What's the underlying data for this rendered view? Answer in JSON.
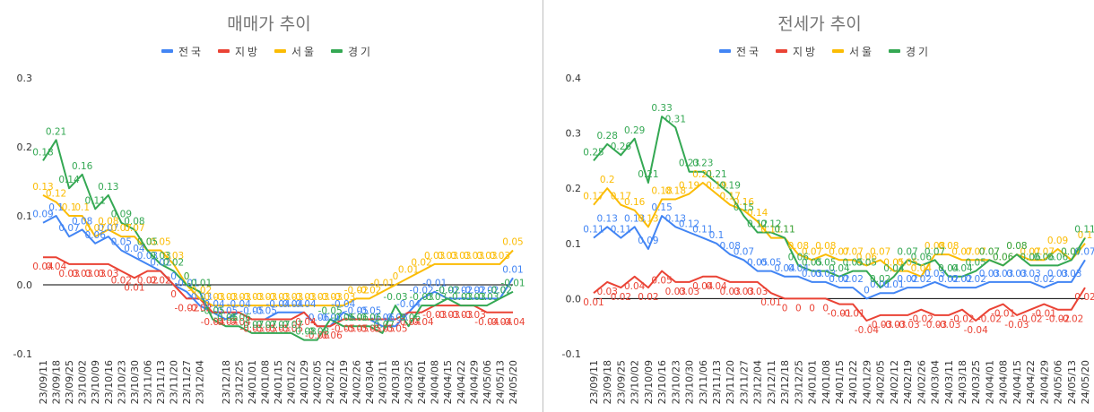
{
  "chart_data": [
    {
      "type": "line",
      "title": "매매가 추이",
      "ylim": [
        -0.1,
        0.3
      ],
      "yticks": [
        "0.3",
        "0.2",
        "0.1",
        "0.0",
        "-0.1"
      ],
      "ytick_values": [
        0.3,
        0.2,
        0.1,
        0.0,
        -0.1
      ],
      "grid": false,
      "legend": "top",
      "x": [
        "23/09/11",
        "23/09/18",
        "23/09/25",
        "23/10/02",
        "23/10/09",
        "23/10/16",
        "23/10/23",
        "23/10/30",
        "23/11/06",
        "23/11/13",
        "23/11/20",
        "23/11/27",
        "23/12/04",
        "23/12/11",
        "23/12/18",
        "23/12/25",
        "24/01/01",
        "24/01/08",
        "24/01/15",
        "24/01/22",
        "24/01/29",
        "24/02/05",
        "24/02/12",
        "24/02/19",
        "24/02/26",
        "24/03/04",
        "24/03/11",
        "24/03/18",
        "24/03/25",
        "24/04/01",
        "24/04/08",
        "24/04/15",
        "24/04/22",
        "24/04/29",
        "24/05/06",
        "24/05/13",
        "24/05/20"
      ],
      "xticks": [
        "23/09/11",
        "23/09/18",
        "23/09/25",
        "23/10/02",
        "23/10/09",
        "23/10/16",
        "23/10/23",
        "23/10/30",
        "23/11/06",
        "23/11/13",
        "23/11/20",
        "23/11/27",
        "23/12/04",
        "23/12/18",
        "23/12/25",
        "24/01/01",
        "24/01/08",
        "24/01/15",
        "24/01/22",
        "24/01/29",
        "24/02/05",
        "24/02/12",
        "24/02/19",
        "24/02/26",
        "24/03/04",
        "24/03/11",
        "24/03/18",
        "24/03/25",
        "24/04/01",
        "24/04/08",
        "24/04/15",
        "24/04/22",
        "24/04/29",
        "24/05/06",
        "24/05/13",
        "24/05/20"
      ],
      "series": [
        {
          "name": "전국",
          "color": "#4285f4",
          "values": [
            0.09,
            0.1,
            0.07,
            0.08,
            0.06,
            0.07,
            0.05,
            0.04,
            0.03,
            0.02,
            0.0,
            -0.01,
            -0.03,
            -0.04,
            -0.05,
            -0.04,
            -0.05,
            -0.05,
            -0.04,
            -0.04,
            -0.04,
            -0.06,
            -0.06,
            -0.04,
            -0.05,
            -0.05,
            -0.06,
            -0.06,
            -0.04,
            -0.02,
            -0.01,
            -0.02,
            -0.02,
            -0.02,
            -0.02,
            -0.02,
            0.01
          ]
        },
        {
          "name": "지방",
          "color": "#ea4335",
          "values": [
            0.04,
            0.04,
            0.03,
            0.03,
            0.03,
            0.03,
            0.02,
            0.01,
            0.02,
            0.02,
            0.0,
            -0.02,
            -0.02,
            -0.04,
            -0.04,
            -0.04,
            -0.05,
            -0.05,
            -0.05,
            -0.05,
            -0.04,
            -0.06,
            -0.06,
            -0.05,
            -0.05,
            -0.05,
            -0.05,
            -0.05,
            -0.04,
            -0.04,
            -0.03,
            -0.03,
            -0.03,
            -0.03,
            -0.04,
            -0.04,
            -0.04
          ]
        },
        {
          "name": "서울",
          "color": "#fbbc04",
          "values": [
            0.13,
            0.12,
            0.1,
            0.1,
            0.07,
            0.08,
            0.07,
            0.07,
            0.05,
            0.05,
            0.03,
            0.0,
            -0.02,
            -0.03,
            -0.03,
            -0.03,
            -0.03,
            -0.03,
            -0.03,
            -0.03,
            -0.03,
            -0.03,
            -0.03,
            -0.03,
            -0.02,
            -0.02,
            -0.01,
            0.0,
            0.01,
            0.02,
            0.03,
            0.03,
            0.03,
            0.03,
            0.03,
            0.03,
            0.05
          ]
        },
        {
          "name": "경기",
          "color": "#34a853",
          "values": [
            0.18,
            0.21,
            0.14,
            0.16,
            0.11,
            0.13,
            0.09,
            0.08,
            0.05,
            0.03,
            0.02,
            0.0,
            -0.01,
            -0.05,
            -0.06,
            -0.06,
            -0.07,
            -0.07,
            -0.07,
            -0.07,
            -0.08,
            -0.08,
            -0.05,
            -0.06,
            -0.06,
            -0.06,
            -0.07,
            -0.03,
            -0.06,
            -0.03,
            -0.03,
            -0.02,
            -0.03,
            -0.03,
            -0.03,
            -0.02,
            -0.01
          ]
        }
      ]
    },
    {
      "type": "line",
      "title": "전세가 추이",
      "ylim": [
        -0.1,
        0.4
      ],
      "yticks": [
        "0.4",
        "0.3",
        "0.2",
        "0.1",
        "0.0",
        "-0.1"
      ],
      "ytick_values": [
        0.4,
        0.3,
        0.2,
        0.1,
        0.0,
        -0.1
      ],
      "grid": false,
      "legend": "top",
      "x": [
        "23/09/11",
        "23/09/18",
        "23/09/25",
        "23/10/02",
        "23/10/09",
        "23/10/16",
        "23/10/23",
        "23/10/30",
        "23/11/06",
        "23/11/13",
        "23/11/20",
        "23/11/27",
        "23/12/04",
        "23/12/11",
        "23/12/18",
        "23/12/25",
        "24/01/01",
        "24/01/08",
        "24/01/15",
        "24/01/22",
        "24/01/29",
        "24/02/05",
        "24/02/12",
        "24/02/19",
        "24/02/26",
        "24/03/04",
        "24/03/11",
        "24/03/18",
        "24/03/25",
        "24/04/01",
        "24/04/08",
        "24/04/15",
        "24/04/22",
        "24/04/29",
        "24/05/06",
        "24/05/13",
        "24/05/20"
      ],
      "xticks": [
        "23/09/11",
        "23/09/18",
        "23/09/25",
        "23/10/02",
        "23/10/09",
        "23/10/16",
        "23/10/23",
        "23/10/30",
        "23/11/06",
        "23/11/13",
        "23/11/20",
        "23/11/27",
        "23/12/04",
        "23/12/11",
        "23/12/18",
        "23/12/25",
        "24/01/01",
        "24/01/08",
        "24/01/15",
        "24/01/22",
        "24/01/29",
        "24/02/05",
        "24/02/12",
        "24/02/19",
        "24/02/26",
        "24/03/04",
        "24/03/11",
        "24/03/18",
        "24/03/25",
        "24/04/01",
        "24/04/08",
        "24/04/15",
        "24/04/22",
        "24/04/29",
        "24/05/06",
        "24/05/13",
        "24/05/20"
      ],
      "series": [
        {
          "name": "전국",
          "color": "#4285f4",
          "values": [
            0.11,
            0.13,
            0.11,
            0.13,
            0.09,
            0.15,
            0.13,
            0.12,
            0.11,
            0.1,
            0.08,
            0.07,
            0.05,
            0.05,
            0.04,
            0.04,
            0.03,
            0.03,
            0.02,
            0.02,
            0.0,
            0.01,
            0.01,
            0.02,
            0.02,
            0.03,
            0.02,
            0.02,
            0.02,
            0.03,
            0.03,
            0.03,
            0.03,
            0.02,
            0.03,
            0.03,
            0.07
          ]
        },
        {
          "name": "지방",
          "color": "#ea4335",
          "values": [
            0.01,
            0.03,
            0.02,
            0.04,
            0.02,
            0.05,
            0.03,
            0.03,
            0.04,
            0.04,
            0.03,
            0.03,
            0.03,
            0.01,
            0.0,
            0.0,
            0.0,
            0.0,
            -0.01,
            -0.01,
            -0.04,
            -0.03,
            -0.03,
            -0.03,
            -0.02,
            -0.03,
            -0.03,
            -0.02,
            -0.04,
            -0.02,
            -0.01,
            -0.03,
            -0.02,
            -0.01,
            -0.02,
            -0.02,
            0.02
          ]
        },
        {
          "name": "서울",
          "color": "#fbbc04",
          "values": [
            0.17,
            0.2,
            0.17,
            0.16,
            0.13,
            0.18,
            0.18,
            0.19,
            0.21,
            0.19,
            0.17,
            0.16,
            0.14,
            0.11,
            0.11,
            0.08,
            0.07,
            0.08,
            0.07,
            0.07,
            0.06,
            0.07,
            0.05,
            0.05,
            0.04,
            0.08,
            0.08,
            0.07,
            0.07,
            0.07,
            0.06,
            0.08,
            0.07,
            0.07,
            0.09,
            0.07,
            0.1
          ]
        },
        {
          "name": "경기",
          "color": "#34a853",
          "values": [
            0.25,
            0.28,
            0.26,
            0.29,
            0.21,
            0.33,
            0.31,
            0.23,
            0.23,
            0.21,
            0.19,
            0.15,
            0.12,
            0.12,
            0.11,
            0.06,
            0.05,
            0.05,
            0.04,
            0.05,
            0.05,
            0.02,
            0.04,
            0.07,
            0.06,
            0.07,
            0.04,
            0.04,
            0.05,
            0.07,
            0.06,
            0.08,
            0.06,
            0.06,
            0.06,
            0.07,
            0.11
          ]
        }
      ]
    }
  ]
}
